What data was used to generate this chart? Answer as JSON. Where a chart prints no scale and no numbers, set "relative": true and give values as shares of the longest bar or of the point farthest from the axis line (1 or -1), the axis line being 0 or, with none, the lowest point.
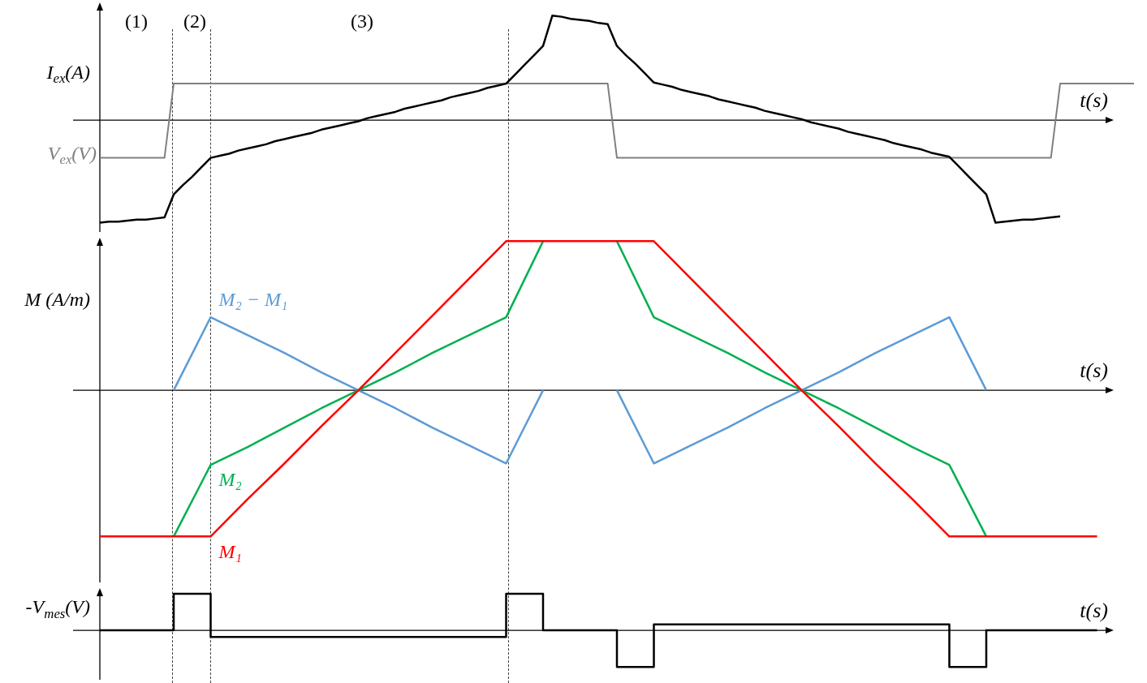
{
  "chart_data": [
    {
      "type": "line",
      "ylabel": "I$_{ex}$(A)",
      "xlabel": "t(s)",
      "relative": true,
      "legend": false,
      "marker": "none",
      "line_style": "solid",
      "annotations": [
        "(1)",
        "(2)",
        "(3)"
      ],
      "categories": [
        null,
        null,
        null,
        null,
        null,
        null,
        null,
        null,
        null,
        null,
        null,
        null,
        null,
        null,
        null,
        null,
        null,
        null,
        null,
        null,
        null,
        null,
        null,
        null,
        null,
        null,
        null,
        null,
        null,
        null,
        null,
        null,
        null,
        null,
        null,
        null,
        null,
        null,
        null,
        null,
        null,
        null,
        null,
        null,
        null,
        null,
        null,
        null,
        null,
        null,
        null,
        null,
        null,
        null,
        null,
        null,
        null,
        null,
        null,
        null,
        null,
        null,
        null,
        null,
        null,
        null,
        null,
        null,
        null,
        null,
        null,
        null,
        null,
        null,
        null,
        null,
        null,
        null,
        null,
        null,
        null,
        null,
        null,
        null,
        null,
        null,
        null,
        null,
        null,
        null,
        null,
        null,
        null,
        null,
        null,
        null,
        null,
        null,
        null,
        null,
        null,
        null,
        null,
        null,
        null,
        null,
        null,
        null,
        null,
        null,
        null,
        null,
        null
      ],
      "series": [
        {
          "color": "#000000",
          "values": [
            -0.98,
            -0.97,
            -0.97,
            -0.96,
            -0.95,
            -0.95,
            -0.94,
            -0.93,
            -0.71,
            -0.62,
            -0.54,
            -0.45,
            -0.36,
            -0.34,
            -0.32,
            -0.29,
            -0.27,
            -0.25,
            -0.23,
            -0.2,
            -0.18,
            -0.16,
            -0.14,
            -0.12,
            -0.09,
            -0.07,
            -0.05,
            -0.03,
            -0.01,
            0.02,
            0.04,
            0.06,
            0.08,
            0.11,
            0.13,
            0.15,
            0.17,
            0.19,
            0.22,
            0.24,
            0.26,
            0.28,
            0.31,
            0.33,
            0.35,
            0.44,
            0.53,
            0.62,
            0.71,
            1,
            0.99,
            0.97,
            0.96,
            0.95,
            0.93,
            0.92,
            0.71,
            0.62,
            0.54,
            0.45,
            0.36,
            0.34,
            0.32,
            0.29,
            0.27,
            0.25,
            0.23,
            0.2,
            0.18,
            0.16,
            0.14,
            0.12,
            0.09,
            0.07,
            0.05,
            0.03,
            0.01,
            -0.02,
            -0.04,
            -0.06,
            -0.08,
            -0.11,
            -0.13,
            -0.15,
            -0.17,
            -0.19,
            -0.22,
            -0.24,
            -0.26,
            -0.28,
            -0.31,
            -0.33,
            -0.35,
            -0.44,
            -0.53,
            -0.62,
            -0.71,
            -0.98,
            -0.97,
            -0.96,
            -0.95,
            -0.95,
            -0.94,
            -0.93,
            -0.92,
            null,
            null,
            null,
            null,
            null,
            null,
            null,
            null
          ]
        },
        {
          "name": "V$_{ex}$(V)",
          "color": "#808080",
          "values": [
            -0.36,
            -0.36,
            -0.36,
            -0.36,
            -0.36,
            -0.36,
            -0.36,
            -0.36,
            0.35,
            0.35,
            0.35,
            0.35,
            0.35,
            0.35,
            0.35,
            0.35,
            0.35,
            0.35,
            0.35,
            0.35,
            0.35,
            0.35,
            0.35,
            0.35,
            0.35,
            0.35,
            0.35,
            0.35,
            0.35,
            0.35,
            0.35,
            0.35,
            0.35,
            0.35,
            0.35,
            0.35,
            0.35,
            0.35,
            0.35,
            0.35,
            0.35,
            0.35,
            0.35,
            0.35,
            0.35,
            0.35,
            0.35,
            0.35,
            0.35,
            0.35,
            0.35,
            0.35,
            0.35,
            0.35,
            0.35,
            0.35,
            -0.36,
            -0.36,
            -0.36,
            -0.36,
            -0.36,
            -0.36,
            -0.36,
            -0.36,
            -0.36,
            -0.36,
            -0.36,
            -0.36,
            -0.36,
            -0.36,
            -0.36,
            -0.36,
            -0.36,
            -0.36,
            -0.36,
            -0.36,
            -0.36,
            -0.36,
            -0.36,
            -0.36,
            -0.36,
            -0.36,
            -0.36,
            -0.36,
            -0.36,
            -0.36,
            -0.36,
            -0.36,
            -0.36,
            -0.36,
            -0.36,
            -0.36,
            -0.36,
            -0.36,
            -0.36,
            -0.36,
            -0.36,
            -0.36,
            -0.36,
            -0.36,
            -0.36,
            -0.36,
            -0.36,
            -0.36,
            0.35,
            0.35,
            0.35,
            0.35,
            0.35,
            0.35,
            0.35,
            0.35,
            0.35
          ]
        }
      ]
    },
    {
      "type": "line",
      "ylabel": "M (A/m)",
      "xlabel": "t(s)",
      "relative": true,
      "legend": false,
      "marker": "none",
      "line_style": "solid",
      "categories": [
        null,
        null,
        null,
        null,
        null,
        null,
        null,
        null,
        null,
        null,
        null,
        null,
        null,
        null,
        null,
        null,
        null,
        null,
        null,
        null,
        null,
        null,
        null,
        null,
        null,
        null,
        null,
        null,
        null
      ],
      "series": [
        {
          "name": "M₁",
          "color": "#ff0000",
          "values": [
            -0.98,
            -0.98,
            -0.98,
            -0.98,
            -0.73,
            -0.49,
            -0.24,
            0,
            0.25,
            0.5,
            0.75,
            1,
            1,
            1,
            1,
            1,
            0.75,
            0.5,
            0.25,
            0,
            -0.24,
            -0.49,
            -0.73,
            -0.98,
            -0.98,
            -0.98,
            -0.98,
            -0.98,
            null
          ]
        },
        {
          "name": "M₂",
          "color": "#00b050",
          "values": [
            null,
            null,
            -0.98,
            -0.5,
            -0.38,
            -0.25,
            -0.12,
            0,
            0.12,
            0.25,
            0.37,
            0.49,
            1,
            null,
            1,
            0.49,
            0.37,
            0.25,
            0.12,
            0,
            -0.12,
            -0.25,
            -0.38,
            -0.5,
            -0.98,
            null,
            null,
            null,
            null
          ]
        },
        {
          "name": "M₂ − M₁",
          "color": "#5b9bd5",
          "values": [
            null,
            null,
            0,
            0.49,
            0.37,
            0.25,
            0.12,
            0,
            -0.12,
            -0.25,
            -0.37,
            -0.49,
            0,
            null,
            0,
            -0.49,
            -0.37,
            -0.25,
            -0.12,
            0,
            0.12,
            0.25,
            0.37,
            0.49,
            0,
            null,
            null,
            null,
            null
          ]
        }
      ]
    },
    {
      "type": "step",
      "ylabel": "-V$_{mes}$(V)",
      "xlabel": "t(s)",
      "relative": true,
      "legend": false,
      "marker": "none",
      "line_style": "solid",
      "categories": [
        null,
        null,
        null,
        null,
        null,
        null,
        null,
        null,
        null,
        null,
        null,
        null,
        null,
        null,
        null,
        null,
        null,
        null,
        null,
        null,
        null,
        null,
        null,
        null,
        null,
        null,
        null,
        null,
        null
      ],
      "series": [
        {
          "color": "#000000",
          "values": [
            0,
            0,
            1,
            -0.18,
            -0.18,
            -0.18,
            -0.18,
            -0.18,
            -0.18,
            -0.18,
            -0.18,
            1,
            0,
            0,
            -1,
            0.16,
            0.16,
            0.16,
            0.16,
            0.16,
            0.16,
            0.16,
            0.16,
            -1,
            0,
            0,
            0,
            0,
            null
          ]
        }
      ]
    }
  ]
}
